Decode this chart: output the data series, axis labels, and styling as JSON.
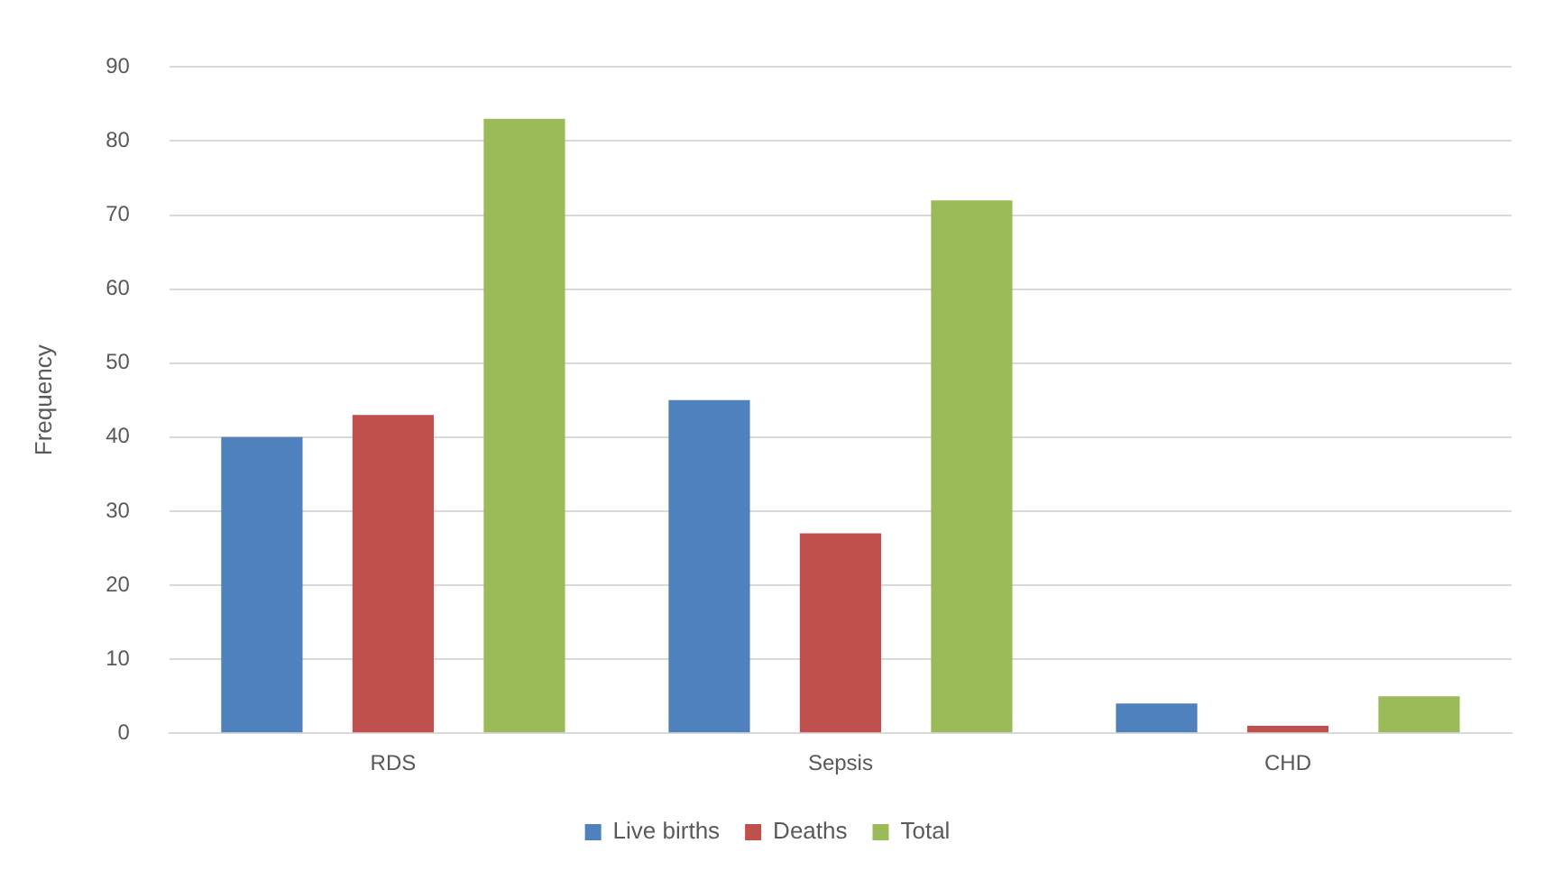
{
  "chart_data": {
    "type": "bar",
    "ylabel": "Frequency",
    "categories": [
      "RDS",
      "Sepsis",
      "CHD"
    ],
    "series": [
      {
        "name": "Live births",
        "color": "#4f81bd",
        "values": [
          40,
          45,
          4
        ]
      },
      {
        "name": "Deaths",
        "color": "#c0504d",
        "values": [
          43,
          27,
          1
        ]
      },
      {
        "name": "Total",
        "color": "#9bbb59",
        "values": [
          83,
          72,
          5
        ]
      }
    ],
    "ylim": [
      0,
      90
    ],
    "yticks": [
      0,
      10,
      20,
      30,
      40,
      50,
      60,
      70,
      80,
      90
    ],
    "grid": "y",
    "legend": "bottom"
  }
}
